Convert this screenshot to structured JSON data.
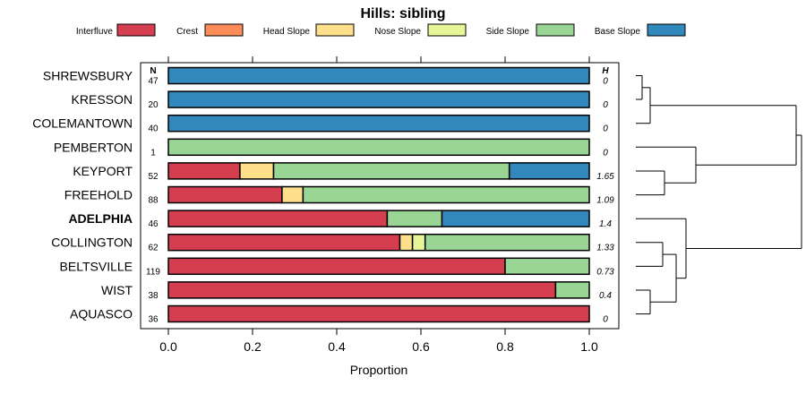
{
  "chart_data": {
    "type": "bar",
    "orientation": "horizontal",
    "stacked": true,
    "title": "Hills: sibling",
    "xlabel": "Proportion",
    "ylabel": "",
    "xlim": [
      0,
      1
    ],
    "x_ticks": [
      "0.0",
      "0.2",
      "0.4",
      "0.6",
      "0.8",
      "1.0"
    ],
    "n_header": "N",
    "h_header": "H",
    "legend_position": "top",
    "series": [
      {
        "name": "Interfluve",
        "color": "#d53e4f"
      },
      {
        "name": "Crest",
        "color": "#fc8d59"
      },
      {
        "name": "Head Slope",
        "color": "#fee08b"
      },
      {
        "name": "Nose Slope",
        "color": "#e6f598"
      },
      {
        "name": "Side Slope",
        "color": "#99d594"
      },
      {
        "name": "Base Slope",
        "color": "#3288bd"
      }
    ],
    "categories": [
      {
        "name": "SHREWSBURY",
        "n": "47",
        "h": "0",
        "bold": false,
        "values": [
          0,
          0,
          0,
          0,
          0,
          1.0
        ]
      },
      {
        "name": "KRESSON",
        "n": "20",
        "h": "0",
        "bold": false,
        "values": [
          0,
          0,
          0,
          0,
          0,
          1.0
        ]
      },
      {
        "name": "COLEMANTOWN",
        "n": "40",
        "h": "0",
        "bold": false,
        "values": [
          0,
          0,
          0,
          0,
          0,
          1.0
        ]
      },
      {
        "name": "PEMBERTON",
        "n": "1",
        "h": "0",
        "bold": false,
        "values": [
          0,
          0,
          0,
          0,
          1.0,
          0
        ]
      },
      {
        "name": "KEYPORT",
        "n": "52",
        "h": "1.65",
        "bold": false,
        "values": [
          0.17,
          0,
          0.08,
          0,
          0.56,
          0.19
        ]
      },
      {
        "name": "FREEHOLD",
        "n": "88",
        "h": "1.09",
        "bold": false,
        "values": [
          0.27,
          0,
          0.05,
          0,
          0.68,
          0
        ]
      },
      {
        "name": "ADELPHIA",
        "n": "46",
        "h": "1.4",
        "bold": true,
        "values": [
          0.52,
          0,
          0,
          0,
          0.13,
          0.35
        ]
      },
      {
        "name": "COLLINGTON",
        "n": "62",
        "h": "1.33",
        "bold": false,
        "values": [
          0.55,
          0,
          0.03,
          0.03,
          0.39,
          0
        ]
      },
      {
        "name": "BELTSVILLE",
        "n": "119",
        "h": "0.73",
        "bold": false,
        "values": [
          0.8,
          0,
          0,
          0,
          0.2,
          0
        ]
      },
      {
        "name": "WIST",
        "n": "38",
        "h": "0.4",
        "bold": false,
        "values": [
          0.92,
          0,
          0,
          0,
          0.08,
          0
        ]
      },
      {
        "name": "AQUASCO",
        "n": "36",
        "h": "0",
        "bold": false,
        "values": [
          1.0,
          0,
          0,
          0,
          0,
          0
        ]
      }
    ]
  }
}
